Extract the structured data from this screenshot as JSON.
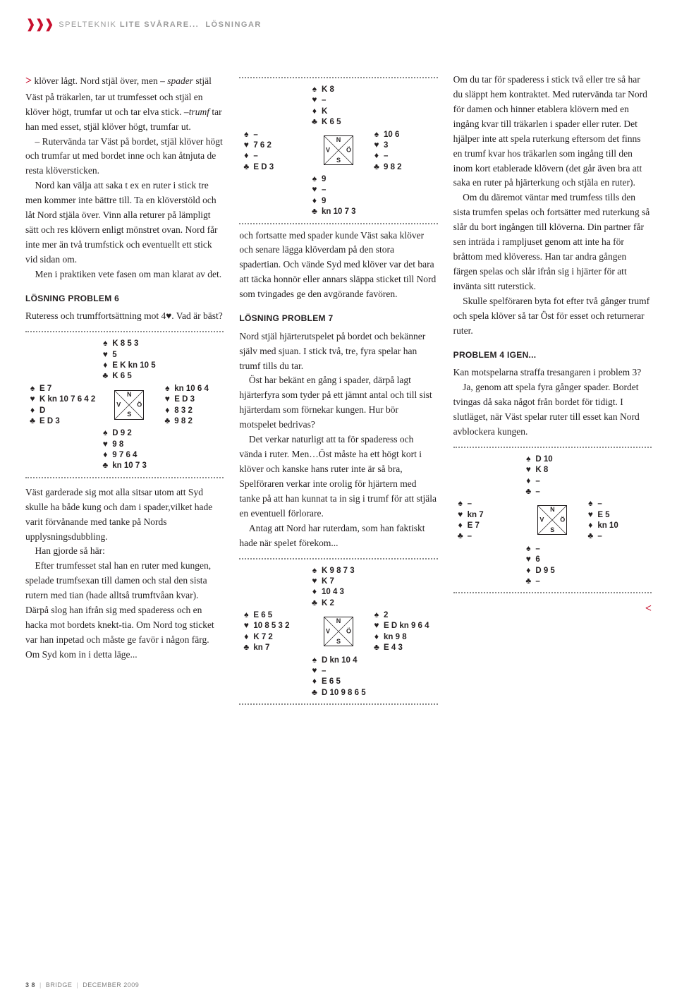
{
  "header": {
    "section": "SPELTEKNIK",
    "sub": "LITE SVÅRARE...",
    "tail": "LÖSNINGAR"
  },
  "suits": {
    "spade": "♠",
    "heart": "♥",
    "diamond": "♦",
    "club": "♣"
  },
  "compass": {
    "N": "N",
    "S": "S",
    "V": "V",
    "O": "Ö"
  },
  "col1": {
    "p1a": "klöver lågt. Nord stjäl över, men ",
    "p1b": " stjäl Väst på träkarlen, tar ut trumfesset och stjäl en klöver högt, trumfar ut och tar elva stick. –",
    "p1c": "  tar han med esset, stjäl  klöver högt, trumfar ut.",
    "p1_spader": "– spader",
    "p1_trumf": "trumf",
    "p2": "– Rutervända tar Väst på bordet, stjäl klöver högt och trumfar ut med bordet inne och kan åtnjuta de resta klöversticken.",
    "p3": "Nord kan välja att saka t ex en ruter i stick tre men kommer inte bättre till. Ta en klöverstöld och låt Nord stjäla över. Vinn alla returer på lämpligt sätt och res klövern enligt mönstret ovan. Nord får inte mer än två trumfstick och eventuellt ett stick vid sidan om.",
    "p4": "Men i praktiken vete fasen om man klarat av det.",
    "h6": "LÖSNING PROBLEM 6",
    "p5": "Ruteress och trumffortsättning mot 4♥. Vad är bäst?",
    "p6": "Väst garderade sig mot alla sitsar utom att Syd skulle ha både kung och dam i spader,vilket hade varit förvånande med tanke på Nords upplysningsdubbling.",
    "p7": "Han gjorde så här:",
    "p8": "Efter trumfesset stal han en ruter med kungen, spelade trumfsexan till damen och stal den sista rutern med tian (hade alltså trumftvåan kvar). Därpå slog han ifrån sig med spaderess och en hacka mot bordets knekt-tia. Om Nord tog sticket var han inpetad och måste ge favör i någon färg. Om Syd kom in i detta läge..."
  },
  "col2": {
    "p1": "och fortsatte med spader kunde Väst saka klöver och senare lägga klöverdam på den stora spadertian. Och vände Syd med klöver var det bara att täcka honnör eller annars släppa sticket till Nord som tvingades ge den avgörande favören.",
    "h7": "LÖSNING PROBLEM 7",
    "p2": "Nord stjäl hjärterutspelet på bordet och bekänner själv med sjuan. I stick två, tre, fyra spelar han trumf tills du tar.",
    "p3": "Öst har bekänt en gång i spader, därpå lagt hjärterfyra som tyder på ett jämnt antal och till sist hjärterdam som förnekar kungen. Hur bör motspelet bedrivas?",
    "p4": "Det verkar naturligt att ta för spaderess och vända i ruter. Men…Öst måste ha ett högt kort i klöver och kanske hans ruter inte är så bra, Spelföraren verkar inte orolig för hjärtern med tanke på att han kunnat ta in sig i trumf för att stjäla en eventuell förlorare.",
    "p5": "Antag att Nord har ruterdam, som han faktiskt hade när spelet förekom..."
  },
  "col3": {
    "p1": "Om du tar för spaderess i stick två eller tre så har du släppt hem kontraktet. Med rutervända tar Nord för damen och hinner etablera klövern med en ingång kvar till träkarlen i spader eller ruter. Det hjälper inte att spela ruterkung eftersom det finns en trumf kvar hos träkarlen som ingång till den inom kort etablerade klövern (det går även bra att saka en ruter på hjärterkung och stjäla en ruter).",
    "p2": "Om du däremot väntar med trumfess tills den sista trumfen spelas och fortsätter med ruterkung så slår du bort ingången till klöverna. Din partner får sen inträda i rampljuset genom att inte ha för bråttom med klöveress. Han tar andra gången färgen spelas och slår ifrån sig i hjärter för att invänta sitt ruterstick.",
    "p3": "Skulle spelföraren byta fot efter två gånger trumf och spela klöver så tar Öst för esset och returnerar ruter.",
    "h4": "PROBLEM 4 IGEN...",
    "p4": "Kan motspelarna straffa tresangaren i problem 3?",
    "p5": "Ja, genom att spela fyra gånger spader. Bordet tvingas då saka något från bordet för tidigt. I slutläget, när Väst spelar ruter till esset kan Nord avblockera kungen."
  },
  "hand1": {
    "N": {
      "s": "K 8 5 3",
      "h": "5",
      "d": "E K kn 10 5",
      "c": "K 6 5"
    },
    "W": {
      "s": "E 7",
      "h": "K kn 10 7 6 4 2",
      "d": "D",
      "c": "E D 3"
    },
    "E": {
      "s": "kn 10 6 4",
      "h": "E D 3",
      "d": "8 3 2",
      "c": "9 8 2"
    },
    "S": {
      "s": "D 9 2",
      "h": "9 8",
      "d": "9 7 6 4",
      "c": "kn 10 7 3"
    }
  },
  "hand2": {
    "N": {
      "s": "K 8",
      "h": "–",
      "d": "K",
      "c": "K 6 5"
    },
    "W": {
      "s": "–",
      "h": "7 6 2",
      "d": "–",
      "c": "E D 3"
    },
    "E": {
      "s": "10 6",
      "h": "3",
      "d": "–",
      "c": "9 8 2"
    },
    "S": {
      "s": "9",
      "h": "–",
      "d": "9",
      "c": "kn 10 7 3"
    }
  },
  "hand3": {
    "N": {
      "s": "K 9 8 7 3",
      "h": "K 7",
      "d": "10 4 3",
      "c": "K 2"
    },
    "W": {
      "s": "E 6 5",
      "h": "10 8 5 3 2",
      "d": "K 7 2",
      "c": "kn 7"
    },
    "E": {
      "s": "2",
      "h": "E D kn 9 6 4",
      "d": "kn 9 8",
      "c": "E 4 3"
    },
    "S": {
      "s": "D kn 10 4",
      "h": "–",
      "d": "E 6 5",
      "c": "D 10 9 8 6 5"
    }
  },
  "hand4": {
    "N": {
      "s": "D 10",
      "h": "K 8",
      "d": "–",
      "c": "–"
    },
    "W": {
      "s": "–",
      "h": "kn 7",
      "d": "E 7",
      "c": "–"
    },
    "E": {
      "s": "–",
      "h": "E 5",
      "d": "kn 10",
      "c": "–"
    },
    "S": {
      "s": "–",
      "h": "6",
      "d": "D 9 5",
      "c": "–"
    }
  },
  "footer": {
    "page": "3 8",
    "mag": "BRIDGE",
    "date": "DECEMBER 2009"
  }
}
